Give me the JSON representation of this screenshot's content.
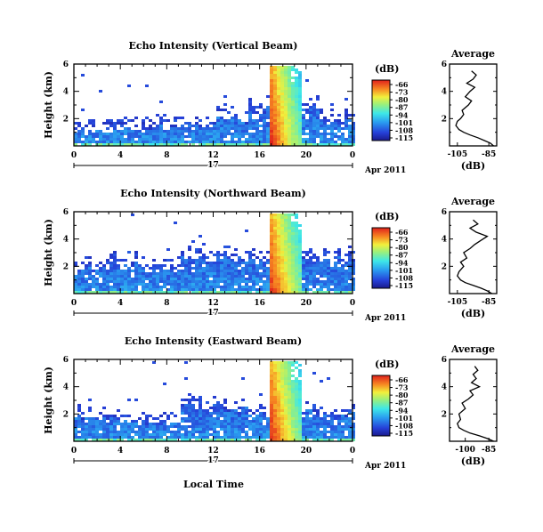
{
  "figure": {
    "xlabel": "Local Time",
    "date_label": "Apr 2011",
    "date_tick": "17"
  },
  "chart_data": [
    {
      "type": "heatmap",
      "title": "Echo Intensity (Vertical Beam)",
      "ylabel": "Height (km)",
      "xlim": [
        0,
        24
      ],
      "ylim": [
        0,
        6
      ],
      "x_ticks": [
        "0",
        "4",
        "8",
        "12",
        "16",
        "20",
        "0"
      ],
      "y_ticks": [
        "2",
        "4",
        "6"
      ],
      "colorbar": {
        "label": "(dB)",
        "ticks": [
          "-66",
          "-73",
          "-80",
          "-87",
          "-94",
          "-101",
          "-108",
          "-115"
        ]
      },
      "description_values": {
        "low_layer_top_km": [
          1.2,
          1.3,
          1.5,
          1.6,
          2.0,
          2.6,
          3.0,
          1.8
        ],
        "intense_column_hours": [
          16.8,
          19.4
        ],
        "intense_column_peak_db": -66
      },
      "average_profile": {
        "title": "Average",
        "xlabel": "(dB)",
        "x_ticks": [
          "-105",
          "-85"
        ],
        "xlim": [
          -110,
          -80
        ],
        "height_km": [
          0.0,
          0.2,
          0.4,
          0.6,
          0.8,
          1.0,
          1.2,
          1.5,
          1.8,
          2.0,
          2.3,
          2.6,
          3.0,
          3.3,
          3.6,
          4.0,
          4.3,
          4.6,
          4.9,
          5.2,
          5.5
        ],
        "value_db": [
          -82,
          -84,
          -88,
          -92,
          -97,
          -101,
          -104,
          -106,
          -105,
          -103,
          -101,
          -102,
          -98,
          -96,
          -100,
          -97,
          -94,
          -99,
          -95,
          -93,
          -96
        ]
      }
    },
    {
      "type": "heatmap",
      "title": "Echo Intensity (Northward Beam)",
      "ylabel": "Height (km)",
      "xlim": [
        0,
        24
      ],
      "ylim": [
        0,
        6
      ],
      "x_ticks": [
        "0",
        "4",
        "8",
        "12",
        "16",
        "20",
        "0"
      ],
      "y_ticks": [
        "2",
        "4",
        "6"
      ],
      "colorbar": {
        "label": "(dB)",
        "ticks": [
          "-66",
          "-73",
          "-80",
          "-87",
          "-94",
          "-101",
          "-108",
          "-115"
        ]
      },
      "description_values": {
        "low_layer_top_km": [
          2.0,
          2.2,
          1.8,
          2.6,
          2.8,
          2.6,
          2.4,
          2.6
        ],
        "intense_column_hours": [
          16.7,
          19.5
        ],
        "intense_column_peak_db": -66
      },
      "average_profile": {
        "title": "Average",
        "xlabel": "(dB)",
        "x_ticks": [
          "-105",
          "-85"
        ],
        "xlim": [
          -110,
          -80
        ],
        "height_km": [
          0.0,
          0.2,
          0.4,
          0.6,
          0.8,
          1.0,
          1.3,
          1.6,
          2.0,
          2.3,
          2.6,
          3.0,
          3.3,
          3.6,
          3.9,
          4.2,
          4.5,
          4.8,
          5.1,
          5.4
        ],
        "value_db": [
          -83,
          -86,
          -90,
          -95,
          -100,
          -103,
          -105,
          -104,
          -101,
          -103,
          -99,
          -101,
          -97,
          -94,
          -90,
          -86,
          -93,
          -97,
          -92,
          -95
        ]
      }
    },
    {
      "type": "heatmap",
      "title": "Echo Intensity (Eastward Beam)",
      "ylabel": "Height (km)",
      "xlim": [
        0,
        24
      ],
      "ylim": [
        0,
        6
      ],
      "x_ticks": [
        "0",
        "4",
        "8",
        "12",
        "16",
        "20",
        "0"
      ],
      "y_ticks": [
        "2",
        "4",
        "6"
      ],
      "colorbar": {
        "label": "(dB)",
        "ticks": [
          "-66",
          "-73",
          "-80",
          "-87",
          "-94",
          "-101",
          "-108",
          "-115"
        ]
      },
      "description_values": {
        "low_layer_top_km": [
          1.8,
          1.6,
          1.4,
          2.6,
          2.4,
          2.0,
          2.2,
          2.0
        ],
        "intense_column_hours": [
          16.8,
          19.4
        ],
        "intense_column_peak_db": -66
      },
      "average_profile": {
        "title": "Average",
        "xlabel": "(dB)",
        "x_ticks": [
          "-100",
          "-85"
        ],
        "xlim": [
          -110,
          -80
        ],
        "height_km": [
          0.0,
          0.2,
          0.4,
          0.6,
          0.8,
          1.0,
          1.3,
          1.6,
          2.0,
          2.4,
          2.8,
          3.1,
          3.4,
          3.7,
          4.0,
          4.3,
          4.6,
          4.9,
          5.2,
          5.5
        ],
        "value_db": [
          -82,
          -86,
          -91,
          -97,
          -101,
          -104,
          -105,
          -103,
          -104,
          -100,
          -102,
          -98,
          -95,
          -97,
          -91,
          -96,
          -93,
          -95,
          -92,
          -94
        ]
      }
    }
  ]
}
